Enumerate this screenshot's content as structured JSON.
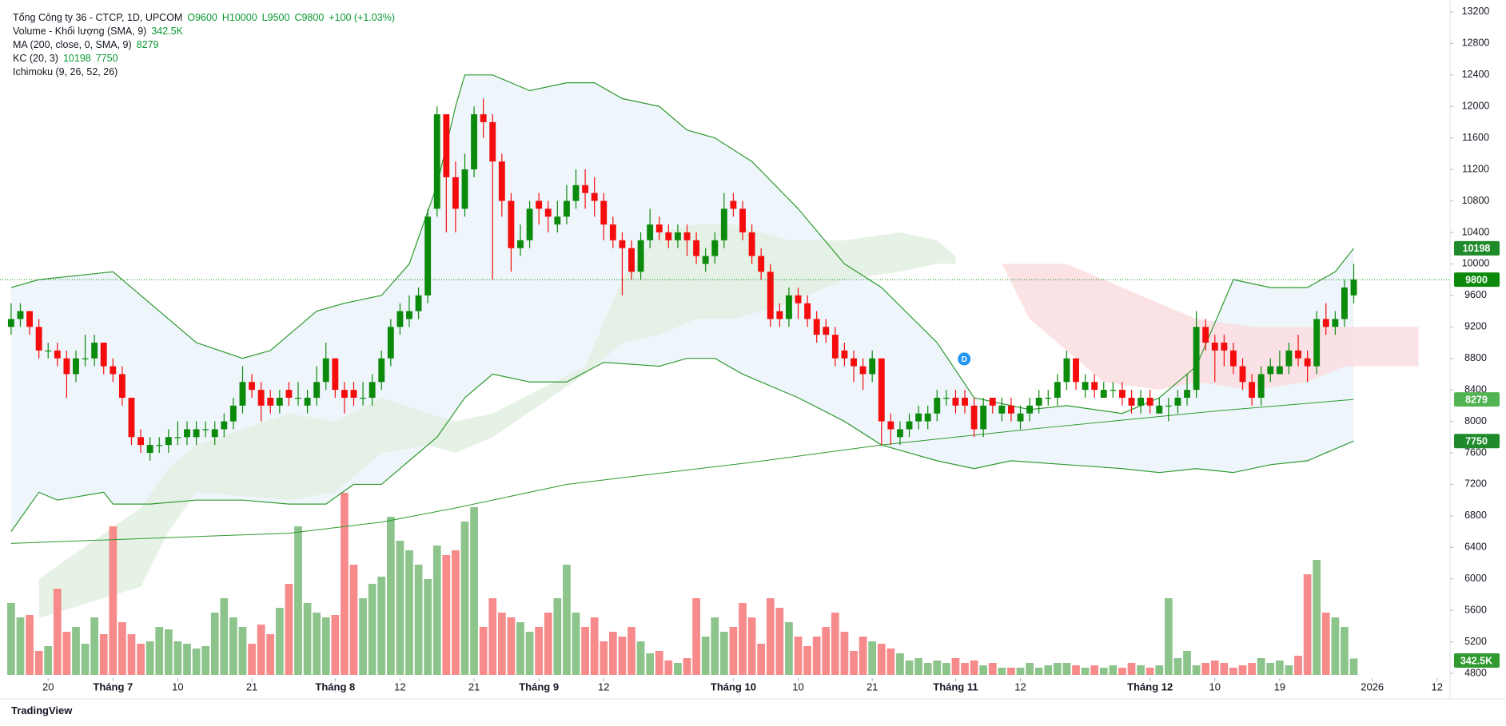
{
  "header": {
    "symbol": "Tổng Công ty 36 - CTCP, 1D, UPCOM",
    "ohlc_labels": [
      "O9600",
      "H10000",
      "L9500",
      "C9800"
    ],
    "change": "+100 (+1.03%)"
  },
  "indicators": [
    {
      "name": "Volume - Khối lượng (SMA, 9)",
      "values": [
        "342.5K"
      ]
    },
    {
      "name": "MA (200, close, 0, SMA, 9)",
      "values": [
        "8279"
      ]
    },
    {
      "name": "KC (20, 3)",
      "values": [
        "10198",
        "7750"
      ]
    },
    {
      "name": "Ichimoku (9, 26, 52, 26)",
      "values": []
    }
  ],
  "branding": "TradingView",
  "chart_data": {
    "type": "candlestick",
    "colors": {
      "up": "#0b8a0b",
      "down": "#f50d0d",
      "up_volume": "#8cc48c",
      "down_volume": "#f78a8a",
      "line": "#2f9a2f",
      "kc_fill": "#eef5fb",
      "cloud_up": "#e3f1e3",
      "cloud_down": "#fbdfe2"
    },
    "grid": false,
    "ylim": [
      4760,
      13250
    ],
    "yticks": [
      4800,
      5200,
      5600,
      6000,
      6400,
      6800,
      7200,
      7600,
      8000,
      8400,
      8800,
      9200,
      9600,
      10000,
      10400,
      10800,
      11200,
      11600,
      12000,
      12400,
      12800,
      13200
    ],
    "xlim": [
      -1.2,
      155.4
    ],
    "xticks": [
      {
        "value": 4,
        "label": "20"
      },
      {
        "value": 11,
        "label": "Tháng 7"
      },
      {
        "value": 18,
        "label": "10"
      },
      {
        "value": 26,
        "label": "21"
      },
      {
        "value": 35,
        "label": "Tháng 8"
      },
      {
        "value": 42,
        "label": "12"
      },
      {
        "value": 50,
        "label": "21"
      },
      {
        "value": 57,
        "label": "Tháng 9"
      },
      {
        "value": 64,
        "label": "12"
      },
      {
        "value": 78,
        "label": "Tháng 10"
      },
      {
        "value": 85,
        "label": "10"
      },
      {
        "value": 93,
        "label": "21"
      },
      {
        "value": 102,
        "label": "Tháng 11"
      },
      {
        "value": 109,
        "label": "12"
      },
      {
        "value": 123,
        "label": "Tháng 12"
      },
      {
        "value": 130,
        "label": "10"
      },
      {
        "value": 137,
        "label": "19"
      },
      {
        "value": 147,
        "label": "2026"
      },
      {
        "value": 154,
        "label": "12"
      }
    ],
    "ohlc": [
      [
        9200,
        9500,
        9100,
        9300
      ],
      [
        9300,
        9500,
        9200,
        9400
      ],
      [
        9400,
        9400,
        9100,
        9200
      ],
      [
        9200,
        9300,
        8800,
        8900
      ],
      [
        8900,
        9000,
        8800,
        8900
      ],
      [
        8900,
        9000,
        8700,
        8800
      ],
      [
        8800,
        8900,
        8300,
        8600
      ],
      [
        8600,
        8900,
        8500,
        8800
      ],
      [
        8800,
        9100,
        8700,
        8800
      ],
      [
        8800,
        9100,
        8700,
        9000
      ],
      [
        9000,
        9000,
        8600,
        8700
      ],
      [
        8700,
        8800,
        8500,
        8600
      ],
      [
        8600,
        8700,
        8200,
        8300
      ],
      [
        8300,
        8300,
        7700,
        7800
      ],
      [
        7800,
        7900,
        7600,
        7700
      ],
      [
        7600,
        7800,
        7500,
        7700
      ],
      [
        7700,
        7800,
        7600,
        7700
      ],
      [
        7700,
        7900,
        7600,
        7800
      ],
      [
        7800,
        8000,
        7700,
        7800
      ],
      [
        7800,
        8000,
        7700,
        7900
      ],
      [
        7800,
        8000,
        7700,
        7900
      ],
      [
        7900,
        8000,
        7800,
        7900
      ],
      [
        7800,
        8000,
        7700,
        7900
      ],
      [
        7900,
        8100,
        7800,
        8000
      ],
      [
        8000,
        8300,
        7900,
        8200
      ],
      [
        8200,
        8700,
        8100,
        8500
      ],
      [
        8500,
        8600,
        8300,
        8400
      ],
      [
        8400,
        8500,
        8000,
        8200
      ],
      [
        8300,
        8400,
        8100,
        8200
      ],
      [
        8200,
        8400,
        8100,
        8300
      ],
      [
        8400,
        8500,
        8200,
        8300
      ],
      [
        8300,
        8500,
        8200,
        8300
      ],
      [
        8200,
        8400,
        8100,
        8300
      ],
      [
        8300,
        8700,
        8200,
        8500
      ],
      [
        8500,
        9000,
        8400,
        8800
      ],
      [
        8800,
        8800,
        8300,
        8400
      ],
      [
        8400,
        8500,
        8100,
        8300
      ],
      [
        8400,
        8500,
        8200,
        8300
      ],
      [
        8300,
        8500,
        8200,
        8300
      ],
      [
        8300,
        8600,
        8200,
        8500
      ],
      [
        8500,
        8900,
        8400,
        8800
      ],
      [
        8800,
        9300,
        8700,
        9200
      ],
      [
        9200,
        9500,
        9100,
        9400
      ],
      [
        9300,
        9600,
        9200,
        9400
      ],
      [
        9400,
        9700,
        9300,
        9600
      ],
      [
        9600,
        10700,
        9500,
        10600
      ],
      [
        10700,
        12000,
        10600,
        11900
      ],
      [
        11900,
        11900,
        10400,
        11100
      ],
      [
        11100,
        11300,
        10400,
        10700
      ],
      [
        10700,
        11400,
        10600,
        11200
      ],
      [
        11200,
        12000,
        11100,
        11900
      ],
      [
        11900,
        12100,
        11600,
        11800
      ],
      [
        11800,
        11900,
        9800,
        11300
      ],
      [
        11300,
        11400,
        10600,
        10800
      ],
      [
        10800,
        10900,
        9900,
        10200
      ],
      [
        10200,
        10500,
        10100,
        10300
      ],
      [
        10300,
        10800,
        10200,
        10700
      ],
      [
        10800,
        10900,
        10500,
        10700
      ],
      [
        10700,
        10800,
        10400,
        10600
      ],
      [
        10500,
        10800,
        10400,
        10600
      ],
      [
        10600,
        11000,
        10500,
        10800
      ],
      [
        10800,
        11200,
        10700,
        11000
      ],
      [
        11000,
        11200,
        10700,
        10900
      ],
      [
        10900,
        11100,
        10600,
        10800
      ],
      [
        10800,
        10900,
        10300,
        10500
      ],
      [
        10500,
        10600,
        10200,
        10300
      ],
      [
        10300,
        10400,
        9600,
        10200
      ],
      [
        10200,
        10300,
        9800,
        9900
      ],
      [
        9900,
        10400,
        9800,
        10300
      ],
      [
        10300,
        10700,
        10200,
        10500
      ],
      [
        10500,
        10600,
        10300,
        10400
      ],
      [
        10400,
        10500,
        10200,
        10300
      ],
      [
        10300,
        10500,
        10200,
        10400
      ],
      [
        10400,
        10500,
        10100,
        10300
      ],
      [
        10300,
        10400,
        10000,
        10100
      ],
      [
        10000,
        10200,
        9900,
        10100
      ],
      [
        10100,
        10400,
        10000,
        10300
      ],
      [
        10300,
        10900,
        10200,
        10700
      ],
      [
        10800,
        10900,
        10600,
        10700
      ],
      [
        10700,
        10800,
        10300,
        10400
      ],
      [
        10400,
        10500,
        10000,
        10100
      ],
      [
        10100,
        10200,
        9800,
        9900
      ],
      [
        9900,
        10000,
        9200,
        9300
      ],
      [
        9400,
        9500,
        9200,
        9300
      ],
      [
        9300,
        9700,
        9200,
        9600
      ],
      [
        9600,
        9700,
        9300,
        9500
      ],
      [
        9500,
        9600,
        9200,
        9300
      ],
      [
        9300,
        9400,
        9000,
        9100
      ],
      [
        9200,
        9300,
        9000,
        9100
      ],
      [
        9100,
        9200,
        8700,
        8800
      ],
      [
        8900,
        9000,
        8700,
        8800
      ],
      [
        8800,
        8900,
        8500,
        8700
      ],
      [
        8700,
        8800,
        8400,
        8600
      ],
      [
        8600,
        8900,
        8500,
        8800
      ],
      [
        8800,
        8800,
        7700,
        8000
      ],
      [
        8000,
        8100,
        7700,
        7900
      ],
      [
        7800,
        8000,
        7700,
        7900
      ],
      [
        7900,
        8100,
        7800,
        8000
      ],
      [
        8000,
        8200,
        7900,
        8100
      ],
      [
        8000,
        8200,
        7900,
        8100
      ],
      [
        8100,
        8400,
        8000,
        8300
      ],
      [
        8300,
        8400,
        8200,
        8300
      ],
      [
        8300,
        8400,
        8100,
        8200
      ],
      [
        8300,
        8400,
        8100,
        8200
      ],
      [
        8200,
        8300,
        7800,
        7900
      ],
      [
        7900,
        8300,
        7800,
        8200
      ],
      [
        8300,
        8300,
        8100,
        8200
      ],
      [
        8100,
        8300,
        8000,
        8200
      ],
      [
        8200,
        8300,
        8000,
        8100
      ],
      [
        8000,
        8200,
        7900,
        8100
      ],
      [
        8100,
        8300,
        8000,
        8200
      ],
      [
        8200,
        8400,
        8100,
        8300
      ],
      [
        8300,
        8400,
        8200,
        8300
      ],
      [
        8300,
        8600,
        8200,
        8500
      ],
      [
        8500,
        8900,
        8400,
        8800
      ],
      [
        8800,
        8800,
        8400,
        8500
      ],
      [
        8400,
        8600,
        8300,
        8500
      ],
      [
        8500,
        8600,
        8300,
        8400
      ],
      [
        8300,
        8500,
        8300,
        8400
      ],
      [
        8400,
        8500,
        8300,
        8400
      ],
      [
        8400,
        8500,
        8200,
        8300
      ],
      [
        8300,
        8400,
        8100,
        8200
      ],
      [
        8200,
        8400,
        8100,
        8300
      ],
      [
        8300,
        8400,
        8100,
        8200
      ],
      [
        8100,
        8300,
        8100,
        8200
      ],
      [
        8200,
        8300,
        8000,
        8200
      ],
      [
        8200,
        8400,
        8100,
        8300
      ],
      [
        8300,
        8600,
        8200,
        8400
      ],
      [
        8400,
        9400,
        8300,
        9200
      ],
      [
        9200,
        9300,
        8900,
        9000
      ],
      [
        9000,
        9100,
        8500,
        8900
      ],
      [
        9000,
        9100,
        8700,
        8900
      ],
      [
        8900,
        9000,
        8600,
        8700
      ],
      [
        8700,
        8800,
        8400,
        8500
      ],
      [
        8500,
        8600,
        8200,
        8300
      ],
      [
        8300,
        8700,
        8200,
        8600
      ],
      [
        8600,
        8800,
        8500,
        8700
      ],
      [
        8600,
        8900,
        8600,
        8700
      ],
      [
        8700,
        9000,
        8600,
        8900
      ],
      [
        8900,
        9100,
        8700,
        8800
      ],
      [
        8800,
        8900,
        8500,
        8700
      ],
      [
        8700,
        9400,
        8600,
        9300
      ],
      [
        9300,
        9500,
        9100,
        9200
      ],
      [
        9200,
        9400,
        9100,
        9300
      ],
      [
        9300,
        9800,
        9200,
        9700
      ],
      [
        9600,
        10000,
        9500,
        9800
      ]
    ],
    "volume": [
      1500,
      1200,
      1250,
      500,
      600,
      1800,
      900,
      1000,
      650,
      1200,
      850,
      3100,
      1100,
      850,
      650,
      700,
      1000,
      950,
      700,
      650,
      550,
      600,
      1300,
      1600,
      1200,
      1000,
      650,
      1050,
      850,
      1400,
      1900,
      3100,
      1500,
      1300,
      1200,
      1250,
      3800,
      2300,
      1600,
      1900,
      2050,
      3300,
      2800,
      2600,
      2300,
      2000,
      2700,
      2500,
      2600,
      3200,
      3500,
      1000,
      1600,
      1300,
      1200,
      1100,
      900,
      1000,
      1300,
      1600,
      2300,
      1300,
      1000,
      1200,
      700,
      900,
      800,
      1000,
      700,
      450,
      500,
      300,
      250,
      350,
      1600,
      800,
      1200,
      900,
      1000,
      1500,
      1200,
      650,
      1600,
      1400,
      1100,
      800,
      600,
      800,
      1000,
      1300,
      900,
      500,
      800,
      700,
      650,
      550,
      450,
      300,
      350,
      250,
      300,
      250,
      350,
      250,
      300,
      200,
      250,
      150,
      150,
      150,
      250,
      150,
      200,
      250,
      250,
      200,
      150,
      200,
      150,
      200,
      150,
      250,
      200,
      150,
      200,
      1600,
      350,
      500,
      200,
      250,
      300,
      250,
      150,
      200,
      250,
      350,
      250,
      300,
      200,
      400,
      2100,
      2400,
      1300,
      1200,
      1000,
      342.5
    ],
    "volume_label": "342.5K",
    "ma200": {
      "x": [
        0,
        30,
        40,
        48,
        60,
        80,
        94,
        110,
        130,
        145
      ],
      "values": [
        6450,
        6580,
        6720,
        6900,
        7200,
        7480,
        7700,
        7900,
        8130,
        8279
      ]
    },
    "kc_upper": {
      "x": [
        0,
        3,
        11,
        15,
        20,
        25,
        28,
        33,
        36,
        40,
        43,
        46,
        48,
        49,
        52,
        56,
        60,
        63,
        66,
        70,
        73,
        76,
        80,
        85,
        90,
        94,
        100,
        104,
        110,
        114,
        120,
        124,
        128,
        132,
        136,
        140,
        143,
        145
      ],
      "values": [
        9700,
        9800,
        9900,
        9500,
        9000,
        8800,
        8900,
        9400,
        9500,
        9600,
        10000,
        11000,
        12000,
        12400,
        12400,
        12200,
        12300,
        12300,
        12100,
        12000,
        11700,
        11600,
        11300,
        10700,
        10000,
        9700,
        9000,
        8300,
        8150,
        8200,
        8100,
        8300,
        8700,
        9800,
        9700,
        9700,
        9900,
        10198
      ]
    },
    "kc_lower": {
      "x": [
        0,
        3,
        5,
        10,
        11,
        15,
        20,
        25,
        30,
        34,
        37,
        40,
        43,
        46,
        49,
        52,
        56,
        60,
        64,
        70,
        73,
        76,
        79,
        85,
        90,
        94,
        100,
        104,
        108,
        114,
        120,
        124,
        128,
        132,
        136,
        140,
        143,
        145
      ],
      "values": [
        6600,
        7100,
        7000,
        7100,
        6950,
        6950,
        7000,
        7000,
        6950,
        6950,
        7200,
        7200,
        7500,
        7800,
        8300,
        8600,
        8500,
        8500,
        8750,
        8700,
        8800,
        8800,
        8600,
        8300,
        8000,
        7700,
        7500,
        7400,
        7500,
        7450,
        7400,
        7350,
        7400,
        7350,
        7450,
        7500,
        7650,
        7750
      ]
    },
    "ichimoku": {
      "x": [
        3,
        14,
        17,
        20,
        30,
        35,
        40,
        45,
        48,
        52,
        62,
        66,
        70,
        74,
        78,
        84,
        90,
        96,
        100,
        102,
        null,
        107,
        110,
        114,
        118,
        124,
        128,
        134,
        140,
        144,
        152
      ],
      "span_a": [
        6000,
        6900,
        7400,
        7700,
        8100,
        8000,
        8300,
        8100,
        8000,
        8100,
        8700,
        9800,
        10400,
        10500,
        10500,
        10300,
        10300,
        10400,
        10300,
        10100,
        null,
        10000,
        9300,
        8900,
        8500,
        8400,
        8500,
        8400,
        8500,
        8700,
        8700
      ],
      "span_b": [
        5500,
        5900,
        6600,
        7100,
        7000,
        7100,
        7600,
        7700,
        7600,
        7800,
        8600,
        9000,
        9100,
        9300,
        9300,
        9500,
        9800,
        9900,
        10000,
        10000,
        null,
        10000,
        10000,
        10000,
        9800,
        9500,
        9300,
        9200,
        9200,
        9200,
        9200
      ]
    },
    "event_marker": "D"
  }
}
